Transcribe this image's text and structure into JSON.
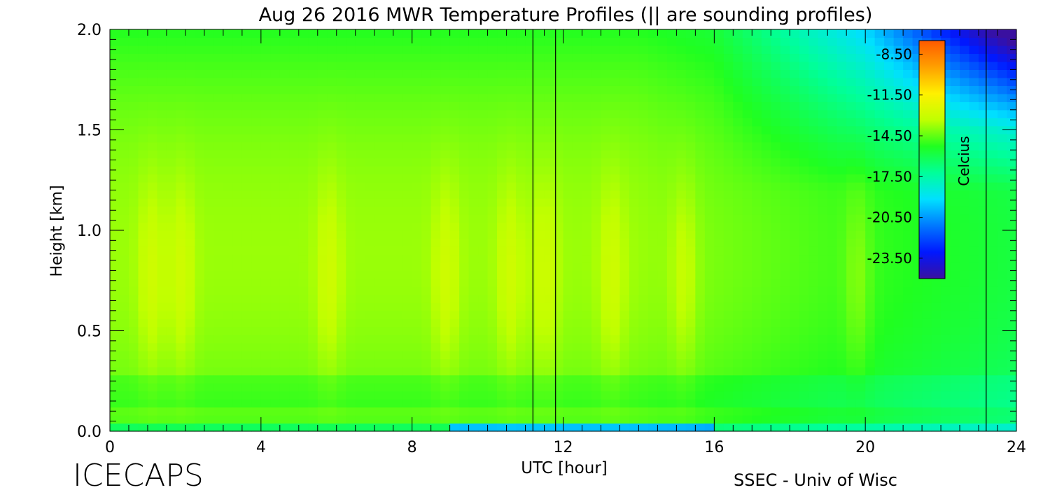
{
  "chart_data": {
    "type": "heatmap",
    "title": "Aug 26 2016 MWR Temperature Profiles (|| are sounding profiles)",
    "xlabel": "UTC [hour]",
    "ylabel": "Height [km]",
    "xlim": [
      0,
      24
    ],
    "ylim": [
      0,
      2.0
    ],
    "x_ticks": [
      0,
      4,
      8,
      12,
      16,
      20,
      24
    ],
    "y_ticks": [
      0.0,
      0.5,
      1.0,
      1.5,
      2.0
    ],
    "x_tick_labels": [
      "0",
      "4",
      "8",
      "12",
      "16",
      "20",
      "24"
    ],
    "y_tick_labels": [
      "0.0",
      "0.5",
      "1.0",
      "1.5",
      "2.0"
    ],
    "sounding_times_utc": [
      11.2,
      11.8,
      23.2
    ],
    "colorbar": {
      "label": "Celcius",
      "range": [
        -25.0,
        -7.5
      ],
      "tick_values": [
        -8.5,
        -11.5,
        -14.5,
        -17.5,
        -20.5,
        -23.5
      ],
      "tick_labels": [
        "-8.50",
        "-11.50",
        "-14.50",
        "-17.50",
        "-20.50",
        "-23.50"
      ],
      "colormap": [
        "#3a10a0",
        "#0018ff",
        "#0078ff",
        "#00e0ff",
        "#00ff9a",
        "#20ff20",
        "#c0ff00",
        "#fff000",
        "#ffa000",
        "#ff5a00"
      ]
    },
    "grid": false,
    "legend_position": "top-right"
  },
  "footer": {
    "left_text": "ICECAPS",
    "right_text": "SSEC - Univ of Wisc"
  }
}
